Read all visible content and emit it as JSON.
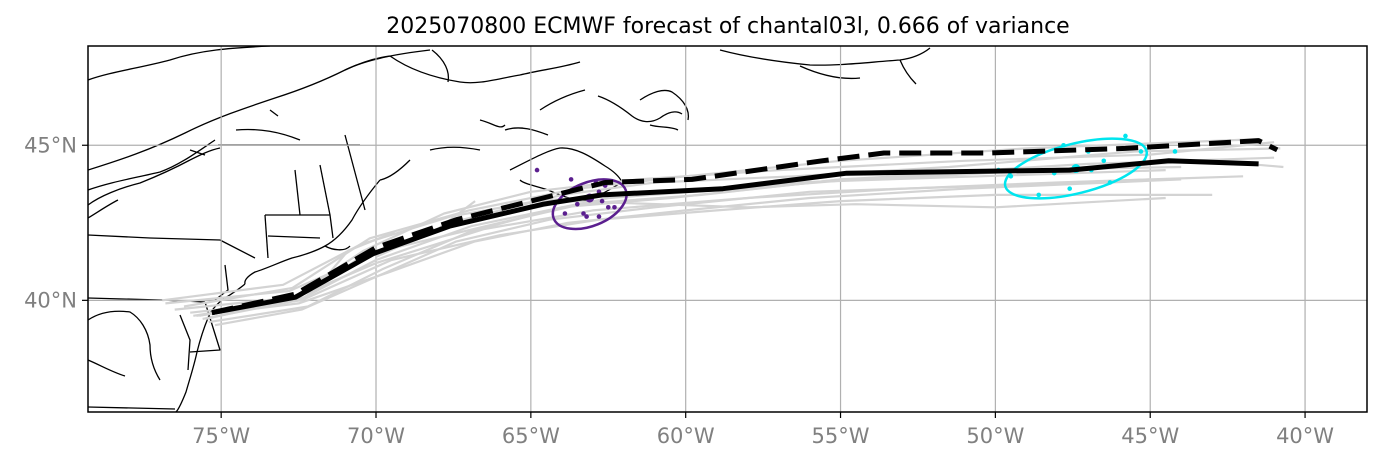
{
  "title": "2025070800 ECMWF forecast of chantal03l, 0.666 of variance",
  "colors": {
    "ensemble": "#d3d3d3",
    "ellipse_early": "#5b1f8f",
    "ellipse_late": "#00e5ee",
    "mean_track": "#000000",
    "grid": "#b0b0b0",
    "tick_text": "#808080",
    "coast": "#000000"
  },
  "chart_data": {
    "type": "map",
    "title": "2025070800 ECMWF forecast of chantal03l, 0.666 of variance",
    "lon_range": [
      -79.3,
      -38.0
    ],
    "lat_range": [
      36.4,
      48.2
    ],
    "x_ticks": [
      "75°W",
      "70°W",
      "65°W",
      "60°W",
      "55°W",
      "50°W",
      "45°W",
      "40°W"
    ],
    "x_tick_values": [
      -75,
      -70,
      -65,
      -60,
      -55,
      -50,
      -45,
      -40
    ],
    "y_ticks": [
      "40°N",
      "45°N"
    ],
    "y_tick_values": [
      40,
      45
    ],
    "grid": true,
    "solid_track": [
      [
        -75.3,
        39.6
      ],
      [
        -72.6,
        40.1
      ],
      [
        -70.1,
        41.5
      ],
      [
        -67.6,
        42.4
      ],
      [
        -64.6,
        43.1
      ],
      [
        -62.7,
        43.4
      ],
      [
        -58.8,
        43.6
      ],
      [
        -54.8,
        44.1
      ],
      [
        -51.2,
        44.15
      ],
      [
        -47.6,
        44.2
      ],
      [
        -44.4,
        44.5
      ],
      [
        -41.5,
        44.4
      ]
    ],
    "dashed_track": [
      [
        -75.3,
        39.6
      ],
      [
        -72.6,
        40.2
      ],
      [
        -70.0,
        41.7
      ],
      [
        -67.4,
        42.6
      ],
      [
        -64.6,
        43.3
      ],
      [
        -62.6,
        43.8
      ],
      [
        -59.8,
        43.9
      ],
      [
        -55.6,
        44.5
      ],
      [
        -53.6,
        44.75
      ],
      [
        -50.2,
        44.75
      ],
      [
        -45.8,
        44.9
      ],
      [
        -41.5,
        45.15
      ],
      [
        -40.9,
        44.85
      ]
    ],
    "ensemble_tracks": [
      [
        [
          -76.8,
          39.9
        ],
        [
          -72.8,
          40.3
        ],
        [
          -69.8,
          41.6
        ],
        [
          -66.0,
          42.5
        ],
        [
          -62.5,
          43.3
        ],
        [
          -57.0,
          43.7
        ],
        [
          -52.0,
          44.1
        ],
        [
          -47.0,
          44.4
        ],
        [
          -41.0,
          44.6
        ]
      ],
      [
        [
          -76.5,
          39.7
        ],
        [
          -72.6,
          40.1
        ],
        [
          -70.0,
          41.2
        ],
        [
          -66.5,
          42.3
        ],
        [
          -63.0,
          42.9
        ],
        [
          -58.0,
          43.3
        ],
        [
          -53.0,
          43.6
        ],
        [
          -48.0,
          43.8
        ],
        [
          -42.0,
          44.0
        ]
      ],
      [
        [
          -76.0,
          39.6
        ],
        [
          -72.4,
          40.0
        ],
        [
          -69.5,
          41.3
        ],
        [
          -66.0,
          42.1
        ],
        [
          -62.8,
          42.6
        ],
        [
          -59.0,
          42.9
        ],
        [
          -55.0,
          43.2
        ],
        [
          -50.0,
          43.4
        ],
        [
          -43.0,
          43.4
        ]
      ],
      [
        [
          -76.2,
          39.8
        ],
        [
          -72.7,
          40.4
        ],
        [
          -70.2,
          42.0
        ],
        [
          -67.0,
          42.9
        ],
        [
          -63.5,
          43.6
        ],
        [
          -60.0,
          44.0
        ],
        [
          -55.0,
          44.5
        ],
        [
          -49.0,
          44.9
        ],
        [
          -41.5,
          45.2
        ]
      ],
      [
        [
          -75.8,
          39.5
        ],
        [
          -72.5,
          39.9
        ],
        [
          -69.6,
          40.9
        ],
        [
          -66.8,
          41.9
        ],
        [
          -63.8,
          42.5
        ],
        [
          -60.0,
          42.9
        ],
        [
          -56.0,
          43.3
        ],
        [
          -51.0,
          43.6
        ],
        [
          -44.0,
          43.9
        ]
      ],
      [
        [
          -75.5,
          39.4
        ],
        [
          -72.3,
          40.1
        ],
        [
          -70.5,
          41.4
        ],
        [
          -67.2,
          42.6
        ],
        [
          -64.0,
          43.4
        ],
        [
          -61.0,
          43.8
        ],
        [
          -56.5,
          44.0
        ],
        [
          -51.5,
          44.3
        ],
        [
          -45.5,
          44.8
        ],
        [
          -40.8,
          44.9
        ]
      ],
      [
        [
          -75.4,
          39.3
        ],
        [
          -72.2,
          39.8
        ],
        [
          -69.8,
          41.0
        ],
        [
          -67.0,
          42.2
        ],
        [
          -64.0,
          43.0
        ],
        [
          -60.5,
          43.3
        ],
        [
          -55.0,
          43.9
        ],
        [
          -49.5,
          44.2
        ],
        [
          -44.0,
          44.3
        ]
      ],
      [
        [
          -75.9,
          39.5
        ],
        [
          -72.8,
          40.0
        ],
        [
          -70.4,
          41.6
        ],
        [
          -67.8,
          42.8
        ],
        [
          -65.0,
          43.5
        ],
        [
          -61.5,
          43.9
        ],
        [
          -57.0,
          44.2
        ],
        [
          -51.0,
          44.5
        ],
        [
          -45.0,
          44.7
        ],
        [
          -41.0,
          45.1
        ]
      ],
      [
        [
          -75.2,
          39.2
        ],
        [
          -72.4,
          39.7
        ],
        [
          -69.9,
          40.8
        ],
        [
          -67.4,
          41.9
        ],
        [
          -64.4,
          42.6
        ],
        [
          -61.0,
          43.0
        ],
        [
          -56.0,
          43.5
        ],
        [
          -50.0,
          43.7
        ],
        [
          -45.0,
          43.9
        ]
      ],
      [
        [
          -76.9,
          40.0
        ],
        [
          -73.0,
          40.5
        ],
        [
          -70.5,
          41.8
        ],
        [
          -67.6,
          42.7
        ],
        [
          -64.8,
          43.2
        ],
        [
          -61.0,
          43.5
        ],
        [
          -56.5,
          43.8
        ],
        [
          -50.5,
          44.0
        ],
        [
          -44.5,
          44.2
        ]
      ],
      [
        [
          -70.0,
          41.4
        ],
        [
          -68.0,
          42.3
        ],
        [
          -66.8,
          43.2
        ]
      ],
      [
        [
          -72.0,
          40.3
        ],
        [
          -70.9,
          41.6
        ],
        [
          -69.4,
          42.2
        ]
      ],
      [
        [
          -75.6,
          39.4
        ],
        [
          -72.5,
          40.0
        ],
        [
          -70.0,
          41.3
        ],
        [
          -66.9,
          42.4
        ],
        [
          -63.5,
          43.1
        ],
        [
          -59.5,
          43.4
        ],
        [
          -55.0,
          43.9
        ],
        [
          -52.0,
          44.0
        ],
        [
          -47.0,
          44.3
        ],
        [
          -43.0,
          44.5
        ],
        [
          -40.7,
          44.3
        ]
      ],
      [
        [
          -75.7,
          39.5
        ],
        [
          -72.6,
          40.1
        ],
        [
          -70.2,
          41.5
        ],
        [
          -67.3,
          42.5
        ],
        [
          -63.8,
          43.2
        ],
        [
          -58.0,
          43.0
        ],
        [
          -54.5,
          43.1
        ],
        [
          -50.0,
          43.0
        ],
        [
          -44.5,
          43.3
        ]
      ]
    ],
    "ellipse_early": {
      "center": [
        -63.1,
        43.1
      ],
      "rx_deg": 2.5,
      "ry_deg": 1.4,
      "rotation_deg": 22
    },
    "ellipse_early_points": [
      [
        -63.1,
        43.3
      ],
      [
        -62.8,
        43.5
      ],
      [
        -63.7,
        43.9
      ],
      [
        -62.5,
        43.0
      ],
      [
        -63.3,
        42.8
      ],
      [
        -62.8,
        42.7
      ],
      [
        -63.9,
        42.8
      ],
      [
        -62.9,
        43.8
      ],
      [
        -62.7,
        43.2
      ],
      [
        -63.5,
        43.1
      ],
      [
        -62.6,
        43.7
      ],
      [
        -63.2,
        42.7
      ],
      [
        -64.8,
        44.2
      ],
      [
        -62.3,
        43.0
      ],
      [
        -63.5,
        43.6
      ]
    ],
    "ellipse_late": {
      "center": [
        -47.4,
        44.25
      ],
      "rx_deg": 4.7,
      "ry_deg": 1.6,
      "rotation_deg": 14
    },
    "ellipse_late_points": [
      [
        -47.4,
        44.25
      ],
      [
        -45.3,
        44.8
      ],
      [
        -48.1,
        44.1
      ],
      [
        -46.5,
        44.5
      ],
      [
        -47.8,
        45.0
      ],
      [
        -49.5,
        44.0
      ],
      [
        -48.6,
        43.4
      ],
      [
        -46.3,
        43.8
      ],
      [
        -47.6,
        43.6
      ],
      [
        -45.8,
        45.3
      ],
      [
        -44.2,
        44.8
      ],
      [
        -47.0,
        44.8
      ],
      [
        -49.9,
        44.2
      ],
      [
        -46.9,
        44.2
      ]
    ]
  }
}
